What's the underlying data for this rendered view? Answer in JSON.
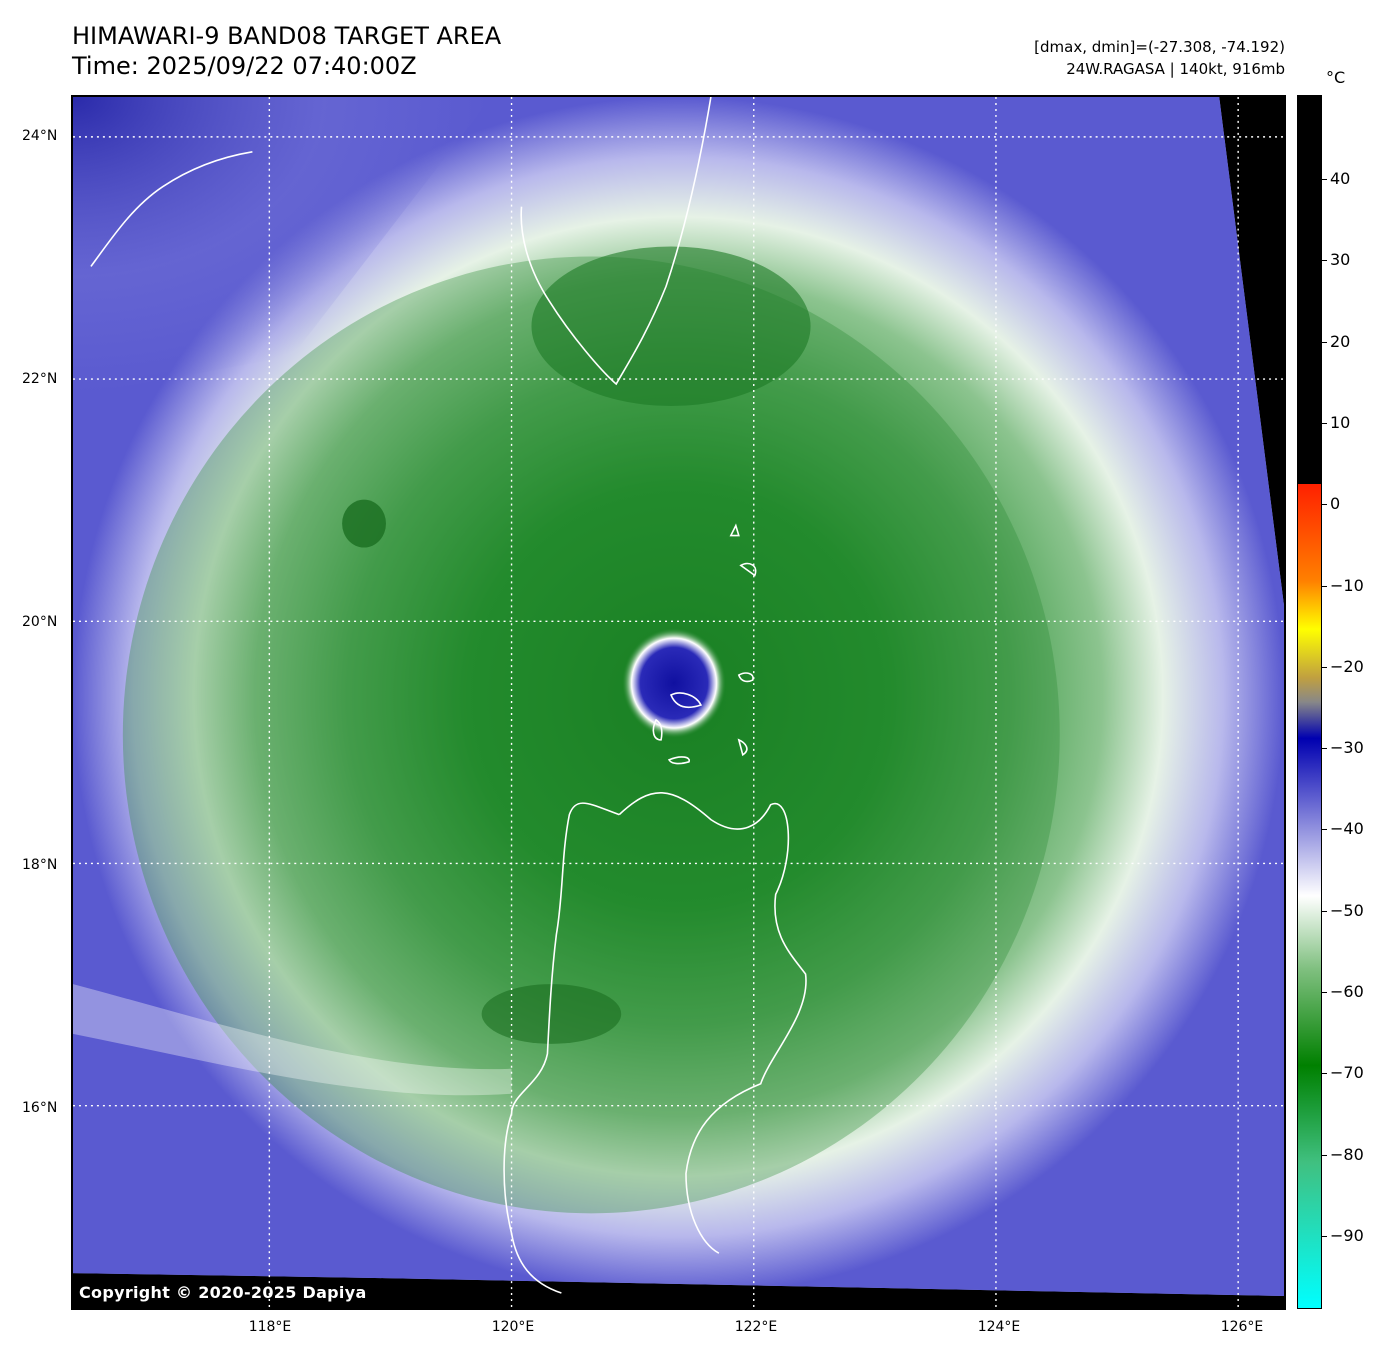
{
  "header": {
    "title": "HIMAWARI-9 BAND08 TARGET AREA",
    "time": "Time: 2025/09/22 07:40:00Z",
    "range_text": "[dmax, dmin]=(-27.308, -74.192)",
    "storm_text": "24W.RAGASA | 140kt, 916mb"
  },
  "map": {
    "copyright": "Copyright © 2020-2025 Dapiya",
    "lat_labels": [
      "24°N",
      "22°N",
      "20°N",
      "18°N",
      "16°N"
    ],
    "lon_labels": [
      "118°E",
      "120°E",
      "122°E",
      "124°E",
      "126°E"
    ]
  },
  "colorbar": {
    "unit": "°C",
    "ticks": [
      "40",
      "30",
      "20",
      "10",
      "0",
      "−10",
      "−20",
      "−30",
      "−40",
      "−50",
      "−60",
      "−70",
      "−80",
      "−90"
    ],
    "colors": {
      "warm": "#000000",
      "red": "#ff2000",
      "yellow": "#ffff00",
      "grey": "#888888",
      "blue": "#0000b0",
      "white": "#ffffff",
      "green": "#008000",
      "cyan": "#00ffff"
    }
  }
}
